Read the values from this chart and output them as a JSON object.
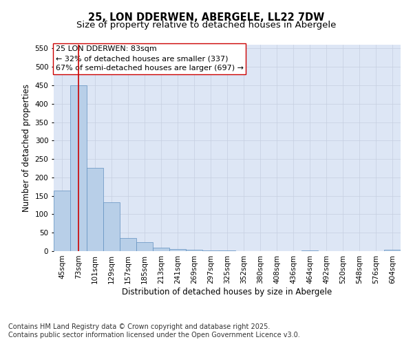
{
  "title1": "25, LON DDERWEN, ABERGELE, LL22 7DW",
  "title2": "Size of property relative to detached houses in Abergele",
  "xlabel": "Distribution of detached houses by size in Abergele",
  "ylabel": "Number of detached properties",
  "categories": [
    "45sqm",
    "73sqm",
    "101sqm",
    "129sqm",
    "157sqm",
    "185sqm",
    "213sqm",
    "241sqm",
    "269sqm",
    "297sqm",
    "325sqm",
    "352sqm",
    "380sqm",
    "408sqm",
    "436sqm",
    "464sqm",
    "492sqm",
    "520sqm",
    "548sqm",
    "576sqm",
    "604sqm"
  ],
  "values": [
    165,
    450,
    225,
    133,
    36,
    25,
    10,
    5,
    3,
    1,
    1,
    0,
    0,
    0,
    0,
    1,
    0,
    0,
    0,
    0,
    3
  ],
  "bar_color": "#b8cfe8",
  "bar_edge_color": "#6090c0",
  "vline_x": 1,
  "vline_color": "#cc0000",
  "annotation_text": "25 LON DDERWEN: 83sqm\n← 32% of detached houses are smaller (337)\n67% of semi-detached houses are larger (697) →",
  "annotation_box_color": "#ffffff",
  "annotation_box_edge": "#cc0000",
  "ylim": [
    0,
    560
  ],
  "yticks": [
    0,
    50,
    100,
    150,
    200,
    250,
    300,
    350,
    400,
    450,
    500,
    550
  ],
  "footnote1": "Contains HM Land Registry data © Crown copyright and database right 2025.",
  "footnote2": "Contains public sector information licensed under the Open Government Licence v3.0.",
  "fig_bg_color": "#ffffff",
  "plot_bg_color": "#dde6f5",
  "grid_color": "#c5cfe0",
  "title_fontsize": 10.5,
  "subtitle_fontsize": 9.5,
  "axis_label_fontsize": 8.5,
  "tick_fontsize": 7.5,
  "annotation_fontsize": 8,
  "footnote_fontsize": 7
}
